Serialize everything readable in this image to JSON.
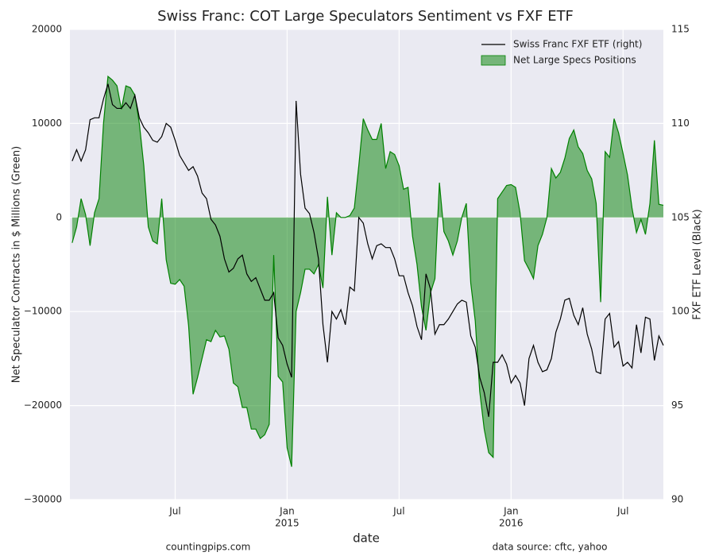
{
  "chart_data": {
    "type": "line",
    "title": "Swiss Franc: COT Large Speculators Sentiment vs FXF ETF",
    "xlabel": "date",
    "ylabel": "Net Speculator Contracts in $ Millions (Green)",
    "y2label": "FXF ETF Level (Black)",
    "footer_left": "countingpips.com",
    "footer_right": "data source: cftc, yahoo",
    "x": [
      2014.04,
      2014.06,
      2014.08,
      2014.1,
      2014.12,
      2014.14,
      2014.16,
      2014.18,
      2014.2,
      2014.22,
      2014.24,
      2014.26,
      2014.28,
      2014.3,
      2014.32,
      2014.34,
      2014.36,
      2014.38,
      2014.4,
      2014.42,
      2014.44,
      2014.46,
      2014.48,
      2014.5,
      2014.52,
      2014.54,
      2014.56,
      2014.58,
      2014.6,
      2014.62,
      2014.64,
      2014.66,
      2014.68,
      2014.7,
      2014.72,
      2014.74,
      2014.76,
      2014.78,
      2014.8,
      2014.82,
      2014.84,
      2014.86,
      2014.88,
      2014.9,
      2014.92,
      2014.94,
      2014.96,
      2014.98,
      2015,
      2015.02,
      2015.04,
      2015.06,
      2015.08,
      2015.1,
      2015.12,
      2015.14,
      2015.16,
      2015.18,
      2015.2,
      2015.22,
      2015.24,
      2015.26,
      2015.28,
      2015.3,
      2015.32,
      2015.34,
      2015.36,
      2015.38,
      2015.4,
      2015.42,
      2015.44,
      2015.46,
      2015.48,
      2015.5,
      2015.52,
      2015.54,
      2015.56,
      2015.58,
      2015.6,
      2015.62,
      2015.64,
      2015.66,
      2015.68,
      2015.7,
      2015.72,
      2015.74,
      2015.76,
      2015.78,
      2015.8,
      2015.82,
      2015.84,
      2015.86,
      2015.88,
      2015.9,
      2015.92,
      2015.94,
      2015.96,
      2015.98,
      2016,
      2016.02,
      2016.04,
      2016.06,
      2016.08,
      2016.1,
      2016.12,
      2016.14,
      2016.16,
      2016.18,
      2016.2,
      2016.22,
      2016.24,
      2016.26,
      2016.28,
      2016.3,
      2016.32,
      2016.34,
      2016.36,
      2016.38,
      2016.4,
      2016.42,
      2016.44,
      2016.46,
      2016.48,
      2016.5,
      2016.52,
      2016.54,
      2016.56,
      2016.58,
      2016.6,
      2016.62,
      2016.64,
      2016.66,
      2016.68
    ],
    "xlim": [
      2014.03,
      2016.68
    ],
    "xticks": [
      {
        "value": 2014.5,
        "label": "Jul"
      },
      {
        "value": 2015,
        "label": "Jan",
        "sublabel": "2015"
      },
      {
        "value": 2015.5,
        "label": "Jul"
      },
      {
        "value": 2016,
        "label": "Jan",
        "sublabel": "2016"
      },
      {
        "value": 2016.5,
        "label": "Jul"
      }
    ],
    "ylim": [
      -30000,
      20000
    ],
    "yticks": [
      {
        "value": -30000,
        "label": "−30000"
      },
      {
        "value": -20000,
        "label": "−20000"
      },
      {
        "value": -10000,
        "label": "−10000"
      },
      0,
      10000,
      20000
    ],
    "y2lim": [
      90,
      115
    ],
    "y2ticks": [
      90,
      95,
      100,
      105,
      110,
      115
    ],
    "grid": true,
    "legend": "upper right",
    "series": [
      {
        "name": "Swiss Franc FXF ETF (right)",
        "color": "#000000",
        "axis": "y2",
        "style": "line",
        "values": [
          108.0,
          108.6,
          108.0,
          108.6,
          110.2,
          110.3,
          110.3,
          111.3,
          112.1,
          111.0,
          110.8,
          110.8,
          111.1,
          110.8,
          111.5,
          110.3,
          109.8,
          109.5,
          109.1,
          109.0,
          109.3,
          110.0,
          109.8,
          109.1,
          108.3,
          107.9,
          107.5,
          107.7,
          107.2,
          106.3,
          106.0,
          104.9,
          104.6,
          104.0,
          102.8,
          102.1,
          102.3,
          102.8,
          103.0,
          102.0,
          101.6,
          101.8,
          101.2,
          100.6,
          100.6,
          101.0,
          98.6,
          98.2,
          97.2,
          96.5,
          111.2,
          107.3,
          105.5,
          105.2,
          104.2,
          102.8,
          99.3,
          97.3,
          100.0,
          99.6,
          100.1,
          99.3,
          101.3,
          101.1,
          105.0,
          104.7,
          103.6,
          102.8,
          103.5,
          103.6,
          103.4,
          103.4,
          102.8,
          101.9,
          101.9,
          101.0,
          100.3,
          99.2,
          98.5,
          102.0,
          101.2,
          98.8,
          99.3,
          99.3,
          99.6,
          100.0,
          100.4,
          100.6,
          100.5,
          98.7,
          98.1,
          96.5,
          95.7,
          94.4,
          97.3,
          97.3,
          97.7,
          97.2,
          96.2,
          96.6,
          96.2,
          95.0,
          97.5,
          98.2,
          97.3,
          96.8,
          96.9,
          97.5,
          98.9,
          99.6,
          100.6,
          100.7,
          99.8,
          99.3,
          100.2,
          98.8,
          98.0,
          96.8,
          96.7,
          99.6,
          99.9,
          98.1,
          98.4,
          97.1,
          97.3,
          97.0,
          99.3,
          97.8,
          99.7,
          99.6,
          97.4,
          98.7,
          98.2
        ]
      },
      {
        "name": "Net Large Specs Positions",
        "color": "#008000",
        "axis": "y",
        "style": "area",
        "values": [
          -2700,
          -1000,
          2000,
          300,
          -3000,
          500,
          2000,
          10000,
          15000,
          14600,
          14000,
          11500,
          14000,
          13800,
          13000,
          10000,
          5500,
          -1000,
          -2500,
          -2800,
          2000,
          -4500,
          -7000,
          -7100,
          -6600,
          -7300,
          -11500,
          -18800,
          -17000,
          -15000,
          -13000,
          -13200,
          -12000,
          -12700,
          -12600,
          -14000,
          -17600,
          -18000,
          -20200,
          -20200,
          -22500,
          -22500,
          -23500,
          -23100,
          -22000,
          -4000,
          -16900,
          -17500,
          -24500,
          -26500,
          -10000,
          -8000,
          -5500,
          -5500,
          -6000,
          -5000,
          -7500,
          2200,
          -4000,
          500,
          0,
          0,
          200,
          1000,
          5500,
          10500,
          9300,
          8300,
          8300,
          10000,
          5200,
          7000,
          6700,
          5500,
          3000,
          3200,
          -2000,
          -5000,
          -9500,
          -12000,
          -8000,
          -6500,
          3700,
          -1500,
          -2500,
          -4000,
          -2500,
          0,
          1500,
          -7000,
          -11000,
          -18500,
          -22500,
          -25000,
          -25500,
          2000,
          2700,
          3400,
          3500,
          3200,
          500,
          -4600,
          -5500,
          -6500,
          -3000,
          -1800,
          0,
          5200,
          4200,
          4800,
          6300,
          8400,
          9300,
          7500,
          6800,
          5000,
          4100,
          1500,
          -9000,
          7000,
          6400,
          10500,
          9000,
          6800,
          4500,
          1000,
          -1600,
          -200,
          -1800,
          1500,
          8200,
          1400,
          1300
        ]
      }
    ]
  }
}
